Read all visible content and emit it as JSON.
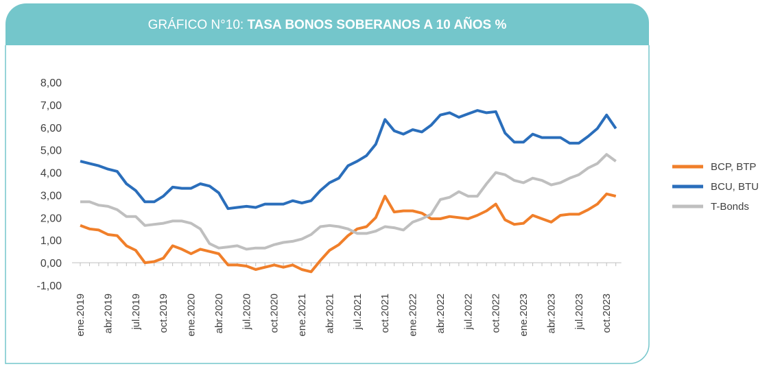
{
  "chart_data": {
    "type": "line",
    "title_prefix": "GRÁFICO N°10:",
    "title": "TASA BONOS SOBERANOS A 10 AÑOS %",
    "categories": [
      "ene.2019",
      null,
      null,
      "abr.2019",
      null,
      null,
      "jul.2019",
      null,
      null,
      "oct.2019",
      null,
      null,
      "ene.2020",
      null,
      null,
      "abr.2020",
      null,
      null,
      "jul.2020",
      null,
      null,
      "oct.2020",
      null,
      null,
      "ene.2021",
      null,
      null,
      "abr.2021",
      null,
      null,
      "jul.2021",
      null,
      null,
      "oct.2021",
      null,
      null,
      "ene.2022",
      null,
      null,
      "abr.2022",
      null,
      null,
      "jul.2022",
      null,
      null,
      "oct.2022",
      null,
      null,
      "ene.2023",
      null,
      null,
      "abr.2023",
      null,
      null,
      "jul.2023",
      null,
      null,
      "oct.2023",
      null
    ],
    "series": [
      {
        "name": "BCP, BTP",
        "color": "#f07f2a",
        "values": [
          1.65,
          1.5,
          1.45,
          1.25,
          1.2,
          0.75,
          0.55,
          0.0,
          0.05,
          0.2,
          0.75,
          0.6,
          0.4,
          0.6,
          0.5,
          0.4,
          -0.1,
          -0.1,
          -0.15,
          -0.3,
          -0.2,
          -0.1,
          -0.2,
          -0.1,
          -0.3,
          -0.4,
          0.1,
          0.55,
          0.8,
          1.2,
          1.5,
          1.6,
          2.0,
          2.95,
          2.25,
          2.3,
          2.3,
          2.2,
          1.95,
          1.95,
          2.05,
          2.0,
          1.95,
          2.1,
          2.3,
          2.6,
          1.9,
          1.7,
          1.75,
          2.1,
          1.95,
          1.8,
          2.1,
          2.15,
          2.15,
          2.35,
          2.6,
          3.05,
          2.95
        ]
      },
      {
        "name": "BCU, BTU",
        "color": "#2a6ebb",
        "values": [
          4.5,
          4.4,
          4.3,
          4.15,
          4.05,
          3.5,
          3.2,
          2.7,
          2.7,
          2.95,
          3.35,
          3.3,
          3.3,
          3.5,
          3.4,
          3.1,
          2.4,
          2.45,
          2.5,
          2.45,
          2.6,
          2.6,
          2.6,
          2.75,
          2.65,
          2.75,
          3.2,
          3.55,
          3.75,
          4.3,
          4.5,
          4.75,
          5.25,
          6.35,
          5.85,
          5.7,
          5.9,
          5.8,
          6.1,
          6.55,
          6.65,
          6.45,
          6.6,
          6.75,
          6.65,
          6.7,
          5.75,
          5.35,
          5.35,
          5.7,
          5.55,
          5.55,
          5.55,
          5.3,
          5.3,
          5.6,
          5.95,
          6.55,
          5.95
        ]
      },
      {
        "name": "T-Bonds",
        "color": "#bfbfbf",
        "values": [
          2.7,
          2.7,
          2.55,
          2.5,
          2.35,
          2.05,
          2.05,
          1.65,
          1.7,
          1.75,
          1.85,
          1.85,
          1.75,
          1.5,
          0.85,
          0.65,
          0.7,
          0.75,
          0.6,
          0.65,
          0.65,
          0.8,
          0.9,
          0.95,
          1.05,
          1.25,
          1.6,
          1.65,
          1.6,
          1.5,
          1.3,
          1.3,
          1.4,
          1.6,
          1.55,
          1.45,
          1.8,
          1.95,
          2.15,
          2.8,
          2.9,
          3.15,
          2.95,
          2.95,
          3.5,
          4.0,
          3.9,
          3.65,
          3.55,
          3.75,
          3.65,
          3.45,
          3.55,
          3.75,
          3.9,
          4.2,
          4.4,
          4.8,
          4.5
        ]
      }
    ],
    "ylim": [
      -1,
      8
    ],
    "yticks": [
      {
        "value": -1,
        "label": "-1,00"
      },
      {
        "value": 0,
        "label": "0,00"
      },
      {
        "value": 1,
        "label": "1,00"
      },
      {
        "value": 2,
        "label": "2,00"
      },
      {
        "value": 3,
        "label": "3,00"
      },
      {
        "value": 4,
        "label": "4,00"
      },
      {
        "value": 5,
        "label": "5,00"
      },
      {
        "value": 6,
        "label": "6,00"
      },
      {
        "value": 7,
        "label": "7,00"
      },
      {
        "value": 8,
        "label": "8,00"
      }
    ],
    "grid": false,
    "legend": "right"
  }
}
